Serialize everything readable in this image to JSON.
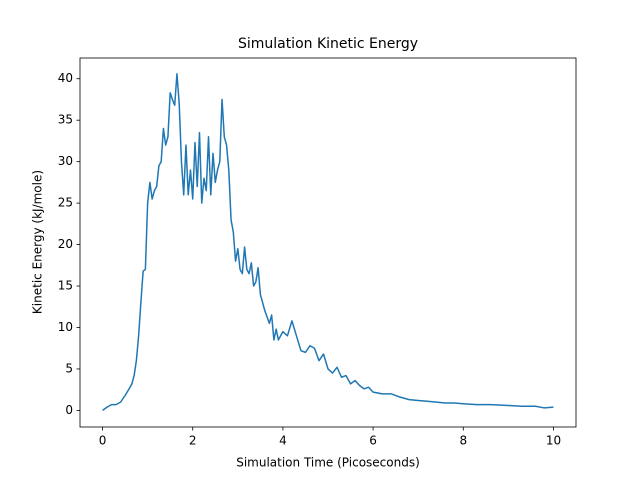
{
  "chart_data": {
    "type": "line",
    "title": "Simulation Kinetic Energy",
    "xlabel": "Simulation Time (Picoseconds)",
    "ylabel": "Kinetic Energy (kJ/mole)",
    "xlim": [
      -0.5,
      10.5
    ],
    "ylim": [
      -2,
      42.5
    ],
    "xticks": [
      0,
      2,
      4,
      6,
      8,
      10
    ],
    "yticks": [
      0,
      5,
      10,
      15,
      20,
      25,
      30,
      35,
      40
    ],
    "x": [
      0,
      0.1,
      0.2,
      0.3,
      0.4,
      0.5,
      0.6,
      0.65,
      0.7,
      0.75,
      0.8,
      0.85,
      0.9,
      0.95,
      1.0,
      1.05,
      1.1,
      1.15,
      1.2,
      1.25,
      1.3,
      1.35,
      1.4,
      1.45,
      1.5,
      1.55,
      1.6,
      1.65,
      1.7,
      1.75,
      1.8,
      1.85,
      1.9,
      1.95,
      2.0,
      2.05,
      2.1,
      2.15,
      2.2,
      2.25,
      2.3,
      2.35,
      2.4,
      2.45,
      2.5,
      2.55,
      2.6,
      2.65,
      2.7,
      2.75,
      2.8,
      2.85,
      2.9,
      2.95,
      3.0,
      3.05,
      3.1,
      3.15,
      3.2,
      3.25,
      3.3,
      3.35,
      3.4,
      3.45,
      3.5,
      3.55,
      3.6,
      3.7,
      3.75,
      3.8,
      3.85,
      3.9,
      4.0,
      4.1,
      4.2,
      4.3,
      4.4,
      4.5,
      4.6,
      4.7,
      4.8,
      4.9,
      5.0,
      5.1,
      5.2,
      5.3,
      5.4,
      5.5,
      5.6,
      5.7,
      5.8,
      5.9,
      6.0,
      6.2,
      6.4,
      6.6,
      6.8,
      7.0,
      7.2,
      7.4,
      7.6,
      7.8,
      8.0,
      8.3,
      8.6,
      9.0,
      9.3,
      9.6,
      9.8,
      10.0
    ],
    "series": [
      {
        "color": "#1f77b4",
        "values": [
          0,
          0.4,
          0.7,
          0.7,
          1.0,
          1.8,
          2.7,
          3.2,
          4.2,
          6,
          9,
          13,
          16.8,
          17,
          25,
          27.5,
          25.5,
          26.5,
          27,
          29.5,
          30,
          34,
          32,
          33,
          38.3,
          37.5,
          36.8,
          40.6,
          37,
          30,
          26,
          32,
          26,
          29,
          25.5,
          32.3,
          27,
          33.5,
          25,
          28,
          26.5,
          33,
          26,
          31,
          27.5,
          29,
          30,
          37.5,
          33,
          32,
          29,
          23,
          21.5,
          18,
          19.5,
          17,
          16.5,
          19.7,
          17,
          16.5,
          17.8,
          15,
          15.5,
          17.2,
          14,
          13,
          12,
          10.5,
          11.5,
          8.5,
          9.8,
          8.5,
          9.5,
          9,
          10.8,
          9,
          7.2,
          7,
          7.8,
          7.5,
          6,
          6.8,
          5,
          4.5,
          5.2,
          4,
          4.2,
          3.2,
          3.6,
          3,
          2.6,
          2.8,
          2.2,
          2,
          2,
          1.6,
          1.3,
          1.2,
          1.1,
          1.0,
          0.9,
          0.9,
          0.8,
          0.7,
          0.7,
          0.6,
          0.5,
          0.5,
          0.3,
          0.4
        ]
      }
    ]
  }
}
